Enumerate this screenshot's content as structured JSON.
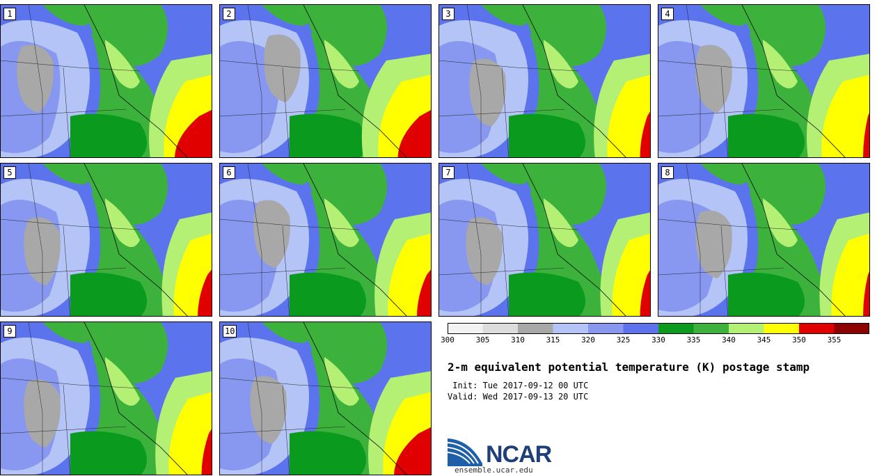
{
  "figure": {
    "title": "2-m equivalent potential temperature (K) postage stamp",
    "init": " Init: Tue 2017-09-12 00 UTC",
    "valid": "Valid: Wed 2017-09-13 20 UTC"
  },
  "members": [
    "1",
    "2",
    "3",
    "4",
    "5",
    "6",
    "7",
    "8",
    "9",
    "10"
  ],
  "colorbar": {
    "ticks": [
      "300",
      "305",
      "310",
      "315",
      "320",
      "325",
      "330",
      "335",
      "340",
      "345",
      "350",
      "355"
    ],
    "colors": [
      "#f2f2f2",
      "#dcdcdc",
      "#a8a8a8",
      "#b4c4f6",
      "#8898f0",
      "#5b74ee",
      "#0a9a1e",
      "#3cb23c",
      "#b4f074",
      "#ffff00",
      "#e00000",
      "#8c0000"
    ]
  },
  "map_colors": {
    "gray": "#a8a8a8",
    "light_blue": "#b4c4f6",
    "mid_blue": "#8898f0",
    "blue": "#5b74ee",
    "dark_green": "#0a9a1e",
    "green": "#3cb23c",
    "light_green": "#b4f074",
    "yellow": "#ffff00",
    "red": "#e00000",
    "ocean_blue": "#7a8cf0"
  },
  "logo": {
    "text": "NCAR",
    "url": "ensemble.ucar.edu"
  }
}
